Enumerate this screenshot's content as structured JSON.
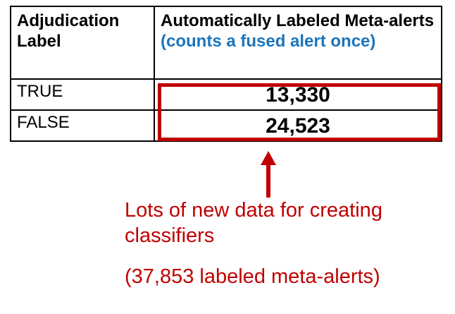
{
  "table": {
    "header": {
      "col1": "Adjudication Label",
      "col2_main": "Automatically Labeled Meta-alerts",
      "col2_note": "(counts a fused alert once)"
    },
    "rows": [
      {
        "label": "TRUE",
        "value": "13,330"
      },
      {
        "label": "FALSE",
        "value": "24,523"
      }
    ]
  },
  "callout": {
    "line1": "Lots of new data for creating classifiers",
    "line2": "(37,853 labeled meta-alerts)"
  },
  "colors": {
    "accent_red": "#c00000",
    "note_blue": "#1b75bc"
  }
}
